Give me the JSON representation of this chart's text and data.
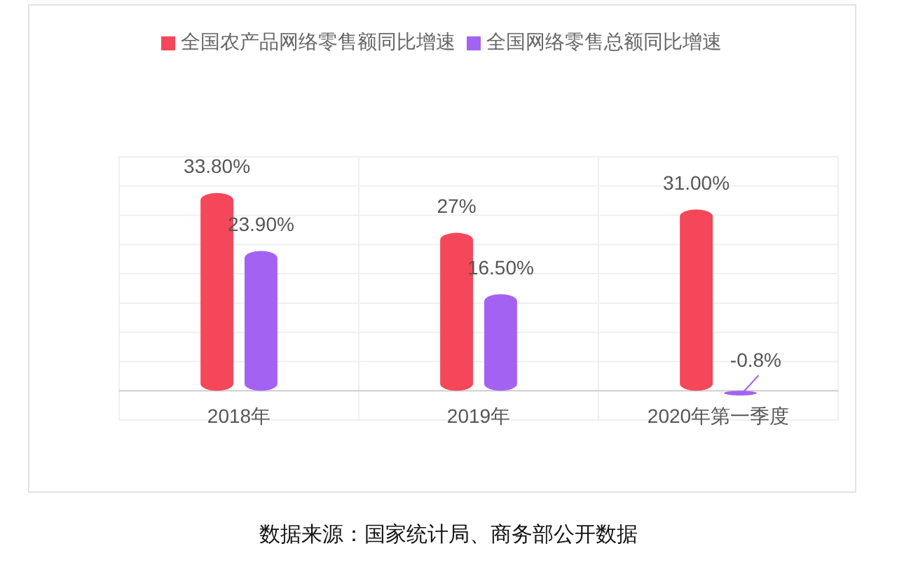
{
  "chart_data": {
    "type": "bar",
    "categories": [
      "2018年",
      "2019年",
      "2020年第一季度"
    ],
    "series": [
      {
        "name": "全国农产品网络零售额同比增速",
        "color": "#f5475a",
        "values": [
          33.8,
          27,
          31
        ],
        "value_labels": [
          "33.80%",
          "27%",
          "31.00%"
        ]
      },
      {
        "name": "全国网络零售总额同比增速",
        "color": "#a462f2",
        "values": [
          23.9,
          16.5,
          -0.8
        ],
        "value_labels": [
          "23.90%",
          "16.50%",
          "-0.8%"
        ]
      }
    ],
    "ylim": [
      -5,
      40
    ],
    "yticks": [
      {
        "value": -5,
        "label": null
      },
      {
        "value": 0,
        "label": null
      },
      {
        "value": 5,
        "label": null
      },
      {
        "value": 10,
        "label": null
      },
      {
        "value": 15,
        "label": null
      },
      {
        "value": 20,
        "label": null
      },
      {
        "value": 25,
        "label": null
      },
      {
        "value": 30,
        "label": null
      },
      {
        "value": 35,
        "label": null
      },
      {
        "value": 40,
        "label": null
      }
    ],
    "tick_labels": "x",
    "grid": true,
    "legend": "top",
    "annotations": [
      "数据来源：国家统计局、商务部公开数据"
    ]
  }
}
